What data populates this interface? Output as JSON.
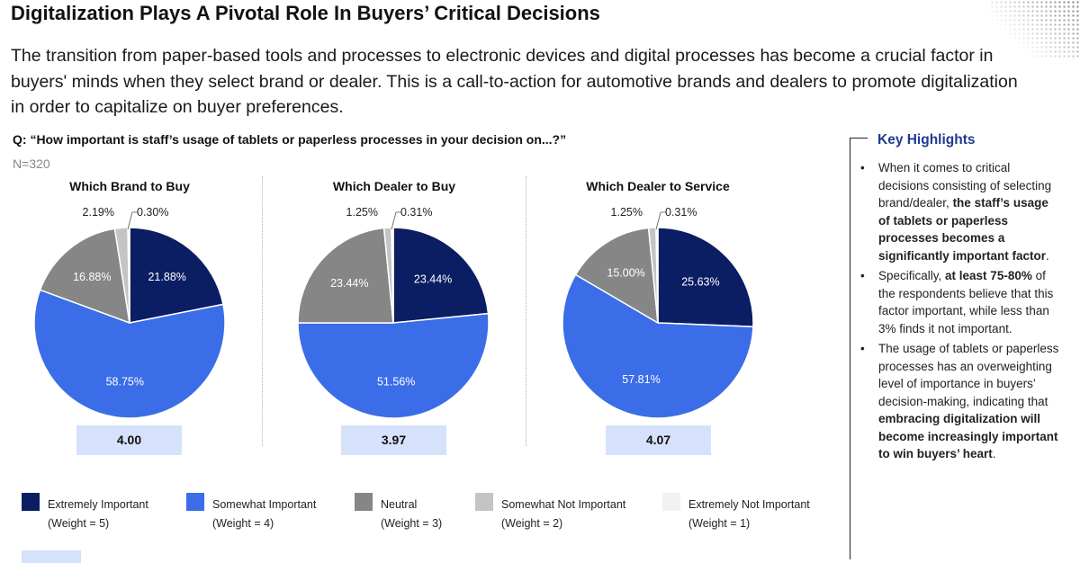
{
  "header": {
    "title": "Digitalization Plays A Pivotal Role In Buyers’ Critical Decisions",
    "intro": "The transition from paper-based tools and processes to electronic devices and digital processes has become a crucial factor in buyers' minds when they select brand or dealer. This is a call-to-action for automotive brands and dealers to promote digitalization in order to capitalize on buyer preferences."
  },
  "question": "Q: “How important is staff’s usage of tablets or paperless processes in your decision on...?”",
  "sample": "N=320",
  "colors": {
    "extremely_important": "#0b1d63",
    "somewhat_important": "#3b6de8",
    "neutral": "#868686",
    "somewhat_not_important": "#c4c4c4",
    "extremely_not_important": "#f1f1f1",
    "score_bg": "#d6e1fb",
    "highlight_title": "#1f3a93"
  },
  "chart_data": [
    {
      "type": "pie",
      "title": "Which Brand to Buy",
      "categories": [
        "Extremely Important",
        "Somewhat Important",
        "Neutral",
        "Somewhat Not Important",
        "Extremely Not Important"
      ],
      "values": [
        21.88,
        58.75,
        16.88,
        2.19,
        0.3
      ],
      "labels": [
        "21.88%",
        "58.75%",
        "16.88%",
        "2.19%",
        "0.30%"
      ],
      "score": "4.00"
    },
    {
      "type": "pie",
      "title": "Which Dealer to Buy",
      "categories": [
        "Extremely Important",
        "Somewhat Important",
        "Neutral",
        "Somewhat Not Important",
        "Extremely Not Important"
      ],
      "values": [
        23.44,
        51.56,
        23.44,
        1.25,
        0.31
      ],
      "labels": [
        "23.44%",
        "51.56%",
        "23.44%",
        "1.25%",
        "0.31%"
      ],
      "score": "3.97"
    },
    {
      "type": "pie",
      "title": "Which Dealer to Service",
      "categories": [
        "Extremely Important",
        "Somewhat Important",
        "Neutral",
        "Somewhat Not Important",
        "Extremely Not Important"
      ],
      "values": [
        25.63,
        57.81,
        15.0,
        1.25,
        0.31
      ],
      "labels": [
        "25.63%",
        "57.81%",
        "15.00%",
        "1.25%",
        "0.31%"
      ],
      "score": "4.07"
    }
  ],
  "legend": [
    {
      "label": "Extremely Important",
      "weight": "(Weight = 5)",
      "color": "#0b1d63"
    },
    {
      "label": "Somewhat Important",
      "weight": "(Weight = 4)",
      "color": "#3b6de8"
    },
    {
      "label": "Neutral",
      "weight": "(Weight = 3)",
      "color": "#868686"
    },
    {
      "label": "Somewhat Not Important",
      "weight": "(Weight = 2)",
      "color": "#c4c4c4"
    },
    {
      "label": "Extremely Not Important",
      "weight": "(Weight = 1)",
      "color": "#f1f1f1"
    }
  ],
  "highlights": {
    "title": "Key Highlights",
    "items": [
      [
        {
          "t": "When it comes to critical decisions consisting of selecting brand/dealer, ",
          "b": false
        },
        {
          "t": "the staff’s usage of tablets or paperless processes becomes a significantly important factor",
          "b": true
        },
        {
          "t": ".",
          "b": false
        }
      ],
      [
        {
          "t": "Specifically, ",
          "b": false
        },
        {
          "t": "at least 75-80%",
          "b": true
        },
        {
          "t": " of the respondents believe that this factor important, while less than 3% finds it not important.",
          "b": false
        }
      ],
      [
        {
          "t": "The usage of tablets or paperless processes has an overweighting level of importance in buyers’ decision-making, indicating that ",
          "b": false
        },
        {
          "t": "embracing digitalization will become increasingly important to win buyers’ heart",
          "b": true
        },
        {
          "t": ".",
          "b": false
        }
      ]
    ]
  }
}
